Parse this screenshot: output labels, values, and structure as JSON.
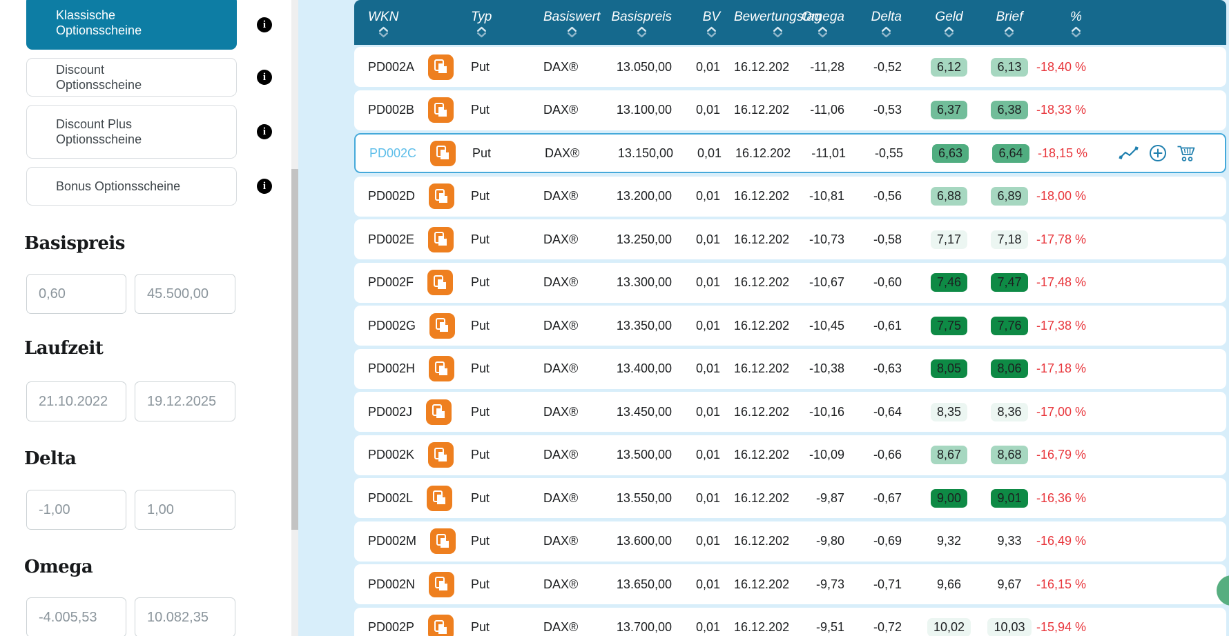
{
  "sidebar": {
    "buttons": [
      {
        "label": "Klassische Optionsscheine",
        "active": true
      },
      {
        "label": "Discount Optionsscheine",
        "active": false
      },
      {
        "label": "Discount Plus Optionsscheine",
        "active": false
      },
      {
        "label": "Bonus Optionsscheine",
        "active": false
      }
    ],
    "info_icon_glyph": "i",
    "filters": [
      {
        "label": "Basispreis",
        "min": "0,60",
        "max": "45.500,00"
      },
      {
        "label": "Laufzeit",
        "min": "21.10.2022",
        "max": "19.12.2025"
      },
      {
        "label": "Delta",
        "min": "-1,00",
        "max": "1,00"
      },
      {
        "label": "Omega",
        "min": "-4.005,53",
        "max": "10.082,35"
      }
    ]
  },
  "table": {
    "columns": [
      "WKN",
      "Typ",
      "Basiswert",
      "Basispreis",
      "BV",
      "Bewertungstag",
      "Omega",
      "Delta",
      "Geld",
      "Brief",
      "%"
    ],
    "sort_indicator": "sort-updown-chevrons-icon",
    "selected_wkn": "PD002C",
    "selected_row_icons": [
      "copy-icon",
      "line-chart-icon",
      "plus-circle-icon",
      "shopping-cart-icon"
    ],
    "rows": [
      {
        "wkn": "PD002A",
        "typ": "Put",
        "basiswert": "DAX®",
        "basispreis": "13.050,00",
        "bv": "0,01",
        "bewertungstag": "16.12.202",
        "omega": "-11,28",
        "delta": "-0,52",
        "geld": "6,12",
        "brief": "6,13",
        "pct": "-18,40 %",
        "badge": "light"
      },
      {
        "wkn": "PD002B",
        "typ": "Put",
        "basiswert": "DAX®",
        "basispreis": "13.100,00",
        "bv": "0,01",
        "bewertungstag": "16.12.202",
        "omega": "-11,06",
        "delta": "-0,53",
        "geld": "6,37",
        "brief": "6,38",
        "pct": "-18,33 %",
        "badge": "medium"
      },
      {
        "wkn": "PD002C",
        "typ": "Put",
        "basiswert": "DAX®",
        "basispreis": "13.150,00",
        "bv": "0,01",
        "bewertungstag": "16.12.202",
        "omega": "-11,01",
        "delta": "-0,55",
        "geld": "6,63",
        "brief": "6,64",
        "pct": "-18,15 %",
        "badge": "medium2"
      },
      {
        "wkn": "PD002D",
        "typ": "Put",
        "basiswert": "DAX®",
        "basispreis": "13.200,00",
        "bv": "0,01",
        "bewertungstag": "16.12.202",
        "omega": "-10,81",
        "delta": "-0,56",
        "geld": "6,88",
        "brief": "6,89",
        "pct": "-18,00 %",
        "badge": "light"
      },
      {
        "wkn": "PD002E",
        "typ": "Put",
        "basiswert": "DAX®",
        "basispreis": "13.250,00",
        "bv": "0,01",
        "bewertungstag": "16.12.202",
        "omega": "-10,73",
        "delta": "-0,58",
        "geld": "7,17",
        "brief": "7,18",
        "pct": "-17,78 %",
        "badge": "faint"
      },
      {
        "wkn": "PD002F",
        "typ": "Put",
        "basiswert": "DAX®",
        "basispreis": "13.300,00",
        "bv": "0,01",
        "bewertungstag": "16.12.202",
        "omega": "-10,67",
        "delta": "-0,60",
        "geld": "7,46",
        "brief": "7,47",
        "pct": "-17,48 %",
        "badge": "dark"
      },
      {
        "wkn": "PD002G",
        "typ": "Put",
        "basiswert": "DAX®",
        "basispreis": "13.350,00",
        "bv": "0,01",
        "bewertungstag": "16.12.202",
        "omega": "-10,45",
        "delta": "-0,61",
        "geld": "7,75",
        "brief": "7,76",
        "pct": "-17,38 %",
        "badge": "dark"
      },
      {
        "wkn": "PD002H",
        "typ": "Put",
        "basiswert": "DAX®",
        "basispreis": "13.400,00",
        "bv": "0,01",
        "bewertungstag": "16.12.202",
        "omega": "-10,38",
        "delta": "-0,63",
        "geld": "8,05",
        "brief": "8,06",
        "pct": "-17,18 %",
        "badge": "dark"
      },
      {
        "wkn": "PD002J",
        "typ": "Put",
        "basiswert": "DAX®",
        "basispreis": "13.450,00",
        "bv": "0,01",
        "bewertungstag": "16.12.202",
        "omega": "-10,16",
        "delta": "-0,64",
        "geld": "8,35",
        "brief": "8,36",
        "pct": "-17,00 %",
        "badge": "faint"
      },
      {
        "wkn": "PD002K",
        "typ": "Put",
        "basiswert": "DAX®",
        "basispreis": "13.500,00",
        "bv": "0,01",
        "bewertungstag": "16.12.202",
        "omega": "-10,09",
        "delta": "-0,66",
        "geld": "8,67",
        "brief": "8,68",
        "pct": "-16,79 %",
        "badge": "light"
      },
      {
        "wkn": "PD002L",
        "typ": "Put",
        "basiswert": "DAX®",
        "basispreis": "13.550,00",
        "bv": "0,01",
        "bewertungstag": "16.12.202",
        "omega": "-9,87",
        "delta": "-0,67",
        "geld": "9,00",
        "brief": "9,01",
        "pct": "-16,36 %",
        "badge": "dark"
      },
      {
        "wkn": "PD002M",
        "typ": "Put",
        "basiswert": "DAX®",
        "basispreis": "13.600,00",
        "bv": "0,01",
        "bewertungstag": "16.12.202",
        "omega": "-9,80",
        "delta": "-0,69",
        "geld": "9,32",
        "brief": "9,33",
        "pct": "-16,49 %",
        "badge": "none"
      },
      {
        "wkn": "PD002N",
        "typ": "Put",
        "basiswert": "DAX®",
        "basispreis": "13.650,00",
        "bv": "0,01",
        "bewertungstag": "16.12.202",
        "omega": "-9,73",
        "delta": "-0,71",
        "geld": "9,66",
        "brief": "9,67",
        "pct": "-16,15 %",
        "badge": "none"
      },
      {
        "wkn": "PD002P",
        "typ": "Put",
        "basiswert": "DAX®",
        "basispreis": "13.700,00",
        "bv": "0,01",
        "bewertungstag": "16.12.202",
        "omega": "-9,51",
        "delta": "-0,72",
        "geld": "10,02",
        "brief": "10,03",
        "pct": "-15,94 %",
        "badge": "faint"
      }
    ]
  },
  "colors": {
    "header_teal": "#15698d",
    "active_button_teal": "#0d7da4",
    "page_light_blue": "#d8eefa",
    "selected_border_blue": "#45a9da",
    "wkn_link_blue": "#5cbde9",
    "copy_icon_orange": "#ee7f1f",
    "negative_red": "#e8353b",
    "fab_green": "#57ae80",
    "badges": {
      "none": "transparent",
      "faint": "#ecf6f2",
      "light": "#a6d7c0",
      "medium": "#72bd9a",
      "medium2": "#50ad80",
      "dark": "#0e8a45"
    }
  }
}
